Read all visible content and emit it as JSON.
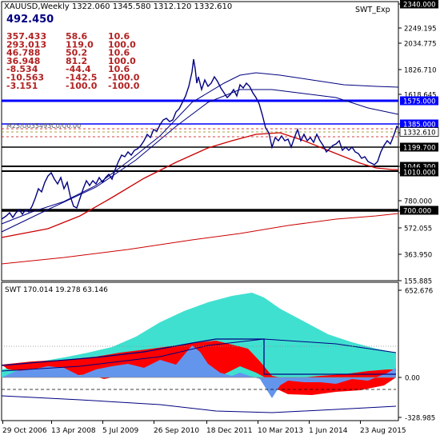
{
  "colors": {
    "price_line": "#000080",
    "level_line": "#0000ff",
    "black_line": "#000000",
    "ma_dark": "#000080",
    "ma_red": "#cc0000",
    "osc_cyan": "#40e0d0",
    "osc_red": "#ff0000",
    "osc_blue": "#6495ed",
    "stats_text": "#b22222",
    "badge_blue": "#0000ff",
    "badge_black": "#000000"
  },
  "header": {
    "title": "XAUUSD,Weekly  1322.060  1345.580  1312.120  1332.610",
    "big_value": "492.450",
    "indicator_name": "SWT_Exp",
    "stats_rows": [
      [
        "357.433",
        "58.6",
        "10.6"
      ],
      [
        "293.013",
        "119.0",
        "100.0"
      ],
      [
        "46.788",
        "50.2",
        "10.6"
      ],
      [
        "36.948",
        "81.2",
        "100.0"
      ],
      [
        "-8.534",
        "-44.4",
        "10.6"
      ],
      [
        "-10.563",
        "-142.5",
        "-100.0"
      ],
      [
        "-3.151",
        "-100.0",
        "-100.0"
      ]
    ],
    "overlap_label": "M25/U035493C0/U0.00"
  },
  "main_axis": {
    "ticks": [
      "2340.000",
      "2249.195",
      "2034.775",
      "1826.710",
      "1618.645",
      "1385.000",
      "1332.610",
      "1199.700",
      "1046.300",
      "1010.000",
      "780.000",
      "700.000",
      "572.055",
      "363.950",
      "155.885"
    ],
    "badges": [
      {
        "label": "2340.000",
        "style": "black"
      },
      {
        "label": "1575.000",
        "style": "blue"
      },
      {
        "label": "1385.000",
        "style": "blue"
      },
      {
        "label": "1332.610",
        "style": "white"
      },
      {
        "label": "1199.700",
        "style": "black"
      },
      {
        "label": "1046.300",
        "style": "black"
      },
      {
        "label": "1010.000",
        "style": "black"
      },
      {
        "label": "700.000",
        "style": "black"
      }
    ]
  },
  "osc_panel": {
    "title": "SWT 170.014 19.278 63.146",
    "ticks": [
      "652.676",
      "0.00",
      "-328.985"
    ]
  },
  "x_axis": {
    "labels": [
      "29 Oct 2006",
      "13 Apr 2008",
      "5 Jul 2009",
      "26 Sep 2010",
      "18 Dec 2011",
      "10 Mar 2013",
      "1 Jun 2014",
      "23 Aug 2015"
    ]
  },
  "chart_data": {
    "type": "line",
    "title": "XAUUSD,Weekly",
    "x": [
      "29 Oct 2006",
      "13 Apr 2008",
      "5 Jul 2009",
      "26 Sep 2010",
      "18 Dec 2011",
      "10 Mar 2013",
      "1 Jun 2014",
      "23 Aug 2015"
    ],
    "series": [
      {
        "name": "XAUUSD",
        "values": [
          600,
          900,
          940,
          1300,
          1650,
          1600,
          1290,
          1330
        ]
      }
    ],
    "ylim": [
      155.885,
      2340.0
    ],
    "levels": [
      1575.0,
      1385.0,
      1199.7,
      1046.3,
      1010.0,
      700.0
    ]
  }
}
